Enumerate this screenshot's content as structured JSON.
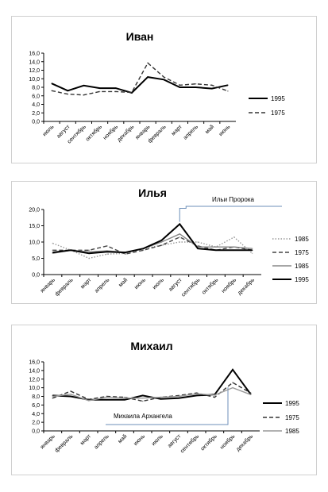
{
  "chart_data": [
    {
      "type": "line",
      "title": "Иван",
      "categories": [
        "июль",
        "август",
        "сентябрь",
        "октябрь",
        "ноябрь",
        "декабрь",
        "январь",
        "февраль",
        "март",
        "апрель",
        "май",
        "июнь"
      ],
      "yticks": [
        "0,0",
        "2,0",
        "4,0",
        "6,0",
        "8,0",
        "10,0",
        "12,0",
        "14,0",
        "16,0"
      ],
      "ylim": [
        0,
        16
      ],
      "series": [
        {
          "name": "1995",
          "color": "#000000",
          "dash": "solid",
          "values": [
            8.9,
            7.2,
            8.4,
            7.8,
            7.8,
            6.7,
            10.4,
            9.8,
            8.0,
            8.0,
            7.7,
            8.5
          ]
        },
        {
          "name": "1975",
          "color": "#333333",
          "dash": "dashed",
          "values": [
            7.2,
            6.4,
            6.2,
            7.0,
            7.0,
            6.8,
            13.7,
            10.4,
            8.5,
            8.8,
            8.5,
            7.1
          ]
        }
      ],
      "legend": "right"
    },
    {
      "type": "line",
      "title": "Илья",
      "categories": [
        "январь",
        "февраль",
        "март",
        "апрель",
        "май",
        "июнь",
        "июль",
        "август",
        "сентябрь",
        "октябрь",
        "ноябрь",
        "декабрь"
      ],
      "yticks": [
        "0,0",
        "5,0",
        "10,0",
        "15,0",
        "20,0"
      ],
      "ylim": [
        0,
        20
      ],
      "annotation": "Ильи Пророка",
      "series": [
        {
          "name": "1985",
          "color": "#999999",
          "dash": "dotted",
          "values": [
            9.6,
            7.5,
            5.0,
            6.3,
            6.5,
            8.0,
            9.0,
            10.0,
            10.0,
            8.5,
            11.5,
            6.5
          ]
        },
        {
          "name": "1975",
          "color": "#444444",
          "dash": "dashed",
          "values": [
            7.5,
            7.5,
            7.5,
            8.8,
            6.3,
            7.5,
            9.0,
            11.5,
            8.8,
            7.5,
            8.5,
            7.5
          ]
        },
        {
          "name": "1985",
          "color": "#888888",
          "dash": "solid",
          "values": [
            6.5,
            7.5,
            7.0,
            7.3,
            6.8,
            8.0,
            10.0,
            12.5,
            8.5,
            8.5,
            8.5,
            8.0
          ]
        },
        {
          "name": "1995",
          "color": "#000000",
          "dash": "solid",
          "values": [
            6.8,
            7.5,
            6.5,
            7.0,
            6.8,
            8.0,
            10.5,
            15.5,
            8.0,
            7.5,
            7.5,
            7.5
          ]
        }
      ],
      "legend": "right"
    },
    {
      "type": "line",
      "title": "Михаил",
      "categories": [
        "январь",
        "февраль",
        "март",
        "апрель",
        "май",
        "июнь",
        "июль",
        "август",
        "сентябрь",
        "октябрь",
        "ноябрь",
        "декабрь"
      ],
      "yticks": [
        "0,0",
        "2,0",
        "4,0",
        "6,0",
        "8,0",
        "10,0",
        "12,0",
        "14,0",
        "16,0"
      ],
      "ylim": [
        0,
        16
      ],
      "annotation": "Михаила Архангела",
      "series": [
        {
          "name": "1995",
          "color": "#000000",
          "dash": "solid",
          "values": [
            8.2,
            8.0,
            7.2,
            7.2,
            7.2,
            8.2,
            7.4,
            7.6,
            8.2,
            8.4,
            14.2,
            8.5
          ]
        },
        {
          "name": "1975",
          "color": "#333333",
          "dash": "dashed",
          "values": [
            7.6,
            9.2,
            7.3,
            8.0,
            7.8,
            6.9,
            7.8,
            8.2,
            8.8,
            7.8,
            11.2,
            8.8
          ]
        },
        {
          "name": "1985",
          "color": "#999999",
          "dash": "solid",
          "values": [
            8.0,
            8.5,
            7.0,
            7.8,
            7.6,
            7.6,
            7.8,
            8.0,
            8.6,
            8.3,
            10.0,
            8.4
          ]
        }
      ],
      "legend": "right"
    }
  ]
}
